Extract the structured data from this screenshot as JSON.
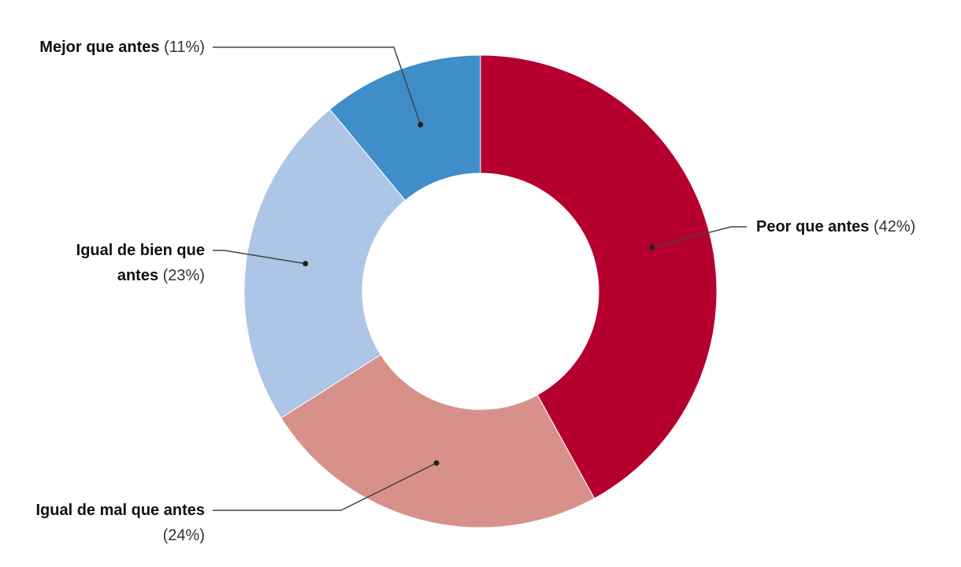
{
  "chart_data": {
    "type": "donut",
    "categories": [
      "Peor que antes",
      "Igual de mal que antes",
      "Igual de bien que antes",
      "Mejor que antes"
    ],
    "values": [
      42,
      24,
      23,
      11
    ],
    "value_labels": [
      "(42%)",
      "(24%)",
      "(23%)",
      "(11%)"
    ],
    "colors": [
      "#b5002f",
      "#d8918a",
      "#adc5e6",
      "#3f8dc9"
    ]
  }
}
